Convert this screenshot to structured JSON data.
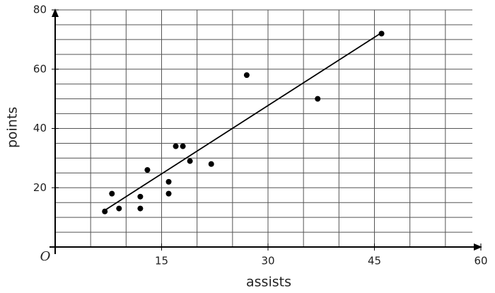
{
  "chart_data": {
    "type": "scatter",
    "x_label": "assists",
    "y_label": "points",
    "origin_label": "O",
    "x": [
      7,
      8,
      9,
      12,
      12,
      13,
      16,
      16,
      17,
      18,
      19,
      22,
      27,
      37,
      46
    ],
    "values": [
      12,
      18,
      13,
      17,
      13,
      26,
      22,
      18,
      34,
      34,
      29,
      28,
      58,
      50,
      72
    ],
    "color": "#000000",
    "trend_line": {
      "x": [
        7,
        46
      ],
      "values": [
        12.4,
        72.3
      ]
    },
    "xlim": [
      0,
      60
    ],
    "ylim": [
      0,
      80
    ],
    "xticks": [
      15,
      30,
      45,
      60
    ],
    "yticks": [
      20,
      40,
      60,
      80
    ],
    "grid": true,
    "grid_step": 5
  }
}
